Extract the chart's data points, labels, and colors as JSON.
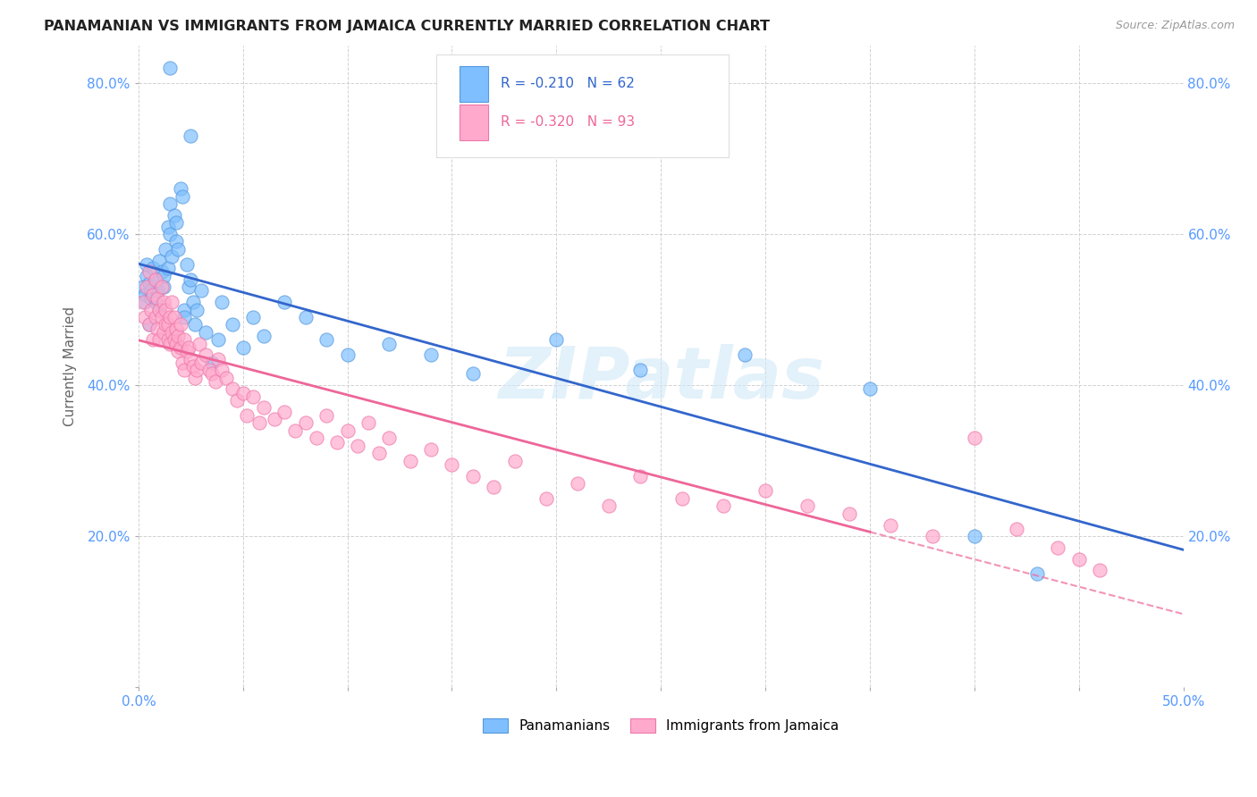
{
  "title": "PANAMANIAN VS IMMIGRANTS FROM JAMAICA CURRENTLY MARRIED CORRELATION CHART",
  "source": "Source: ZipAtlas.com",
  "ylabel_left": "Currently Married",
  "xlim": [
    0.0,
    0.5
  ],
  "ylim": [
    0.0,
    0.85
  ],
  "x_ticks": [
    0.0,
    0.05,
    0.1,
    0.15,
    0.2,
    0.25,
    0.3,
    0.35,
    0.4,
    0.45,
    0.5
  ],
  "x_tick_labels_show": {
    "0.0": "0.0%",
    "0.50": "50.0%"
  },
  "y_ticks": [
    0.0,
    0.2,
    0.4,
    0.6,
    0.8
  ],
  "y_tick_labels": [
    "",
    "20.0%",
    "40.0%",
    "60.0%",
    "80.0%"
  ],
  "legend_r1": "R = -0.210",
  "legend_n1": "N = 62",
  "legend_r2": "R = -0.320",
  "legend_n2": "N = 93",
  "blue_color": "#7fbfff",
  "blue_edge": "#5599dd",
  "pink_color": "#ffaacc",
  "pink_edge": "#ee77aa",
  "line_blue": "#3366cc",
  "line_pink": "#ee6699",
  "watermark": "ZIPatlas",
  "blue_r": -0.21,
  "blue_n": 62,
  "pink_r": -0.32,
  "pink_n": 93,
  "blue_x": [
    0.002,
    0.003,
    0.003,
    0.004,
    0.004,
    0.005,
    0.005,
    0.006,
    0.006,
    0.007,
    0.008,
    0.008,
    0.009,
    0.01,
    0.01,
    0.011,
    0.012,
    0.012,
    0.013,
    0.014,
    0.014,
    0.015,
    0.015,
    0.016,
    0.017,
    0.018,
    0.018,
    0.019,
    0.02,
    0.021,
    0.022,
    0.022,
    0.023,
    0.024,
    0.025,
    0.026,
    0.027,
    0.028,
    0.03,
    0.032,
    0.035,
    0.038,
    0.04,
    0.045,
    0.05,
    0.055,
    0.06,
    0.07,
    0.08,
    0.09,
    0.1,
    0.12,
    0.14,
    0.16,
    0.2,
    0.24,
    0.29,
    0.35,
    0.4,
    0.43,
    0.015,
    0.025
  ],
  "blue_y": [
    0.53,
    0.52,
    0.51,
    0.545,
    0.56,
    0.535,
    0.48,
    0.525,
    0.515,
    0.555,
    0.51,
    0.54,
    0.525,
    0.5,
    0.565,
    0.55,
    0.53,
    0.545,
    0.58,
    0.555,
    0.61,
    0.6,
    0.64,
    0.57,
    0.625,
    0.59,
    0.615,
    0.58,
    0.66,
    0.65,
    0.5,
    0.49,
    0.56,
    0.53,
    0.54,
    0.51,
    0.48,
    0.5,
    0.525,
    0.47,
    0.43,
    0.46,
    0.51,
    0.48,
    0.45,
    0.49,
    0.465,
    0.51,
    0.49,
    0.46,
    0.44,
    0.455,
    0.44,
    0.415,
    0.46,
    0.42,
    0.44,
    0.395,
    0.2,
    0.15,
    0.82,
    0.73
  ],
  "pink_x": [
    0.002,
    0.003,
    0.004,
    0.005,
    0.005,
    0.006,
    0.007,
    0.007,
    0.008,
    0.008,
    0.009,
    0.009,
    0.01,
    0.01,
    0.011,
    0.011,
    0.012,
    0.012,
    0.013,
    0.013,
    0.014,
    0.014,
    0.015,
    0.015,
    0.016,
    0.016,
    0.017,
    0.017,
    0.018,
    0.018,
    0.019,
    0.019,
    0.02,
    0.02,
    0.021,
    0.022,
    0.022,
    0.023,
    0.024,
    0.025,
    0.026,
    0.027,
    0.028,
    0.029,
    0.03,
    0.032,
    0.034,
    0.035,
    0.037,
    0.038,
    0.04,
    0.042,
    0.045,
    0.047,
    0.05,
    0.052,
    0.055,
    0.058,
    0.06,
    0.065,
    0.07,
    0.075,
    0.08,
    0.085,
    0.09,
    0.095,
    0.1,
    0.105,
    0.11,
    0.115,
    0.12,
    0.13,
    0.14,
    0.15,
    0.16,
    0.17,
    0.18,
    0.195,
    0.21,
    0.225,
    0.24,
    0.26,
    0.28,
    0.3,
    0.32,
    0.34,
    0.36,
    0.38,
    0.4,
    0.42,
    0.44,
    0.45,
    0.46
  ],
  "pink_y": [
    0.51,
    0.49,
    0.53,
    0.48,
    0.55,
    0.5,
    0.46,
    0.52,
    0.49,
    0.54,
    0.475,
    0.515,
    0.46,
    0.5,
    0.49,
    0.53,
    0.47,
    0.51,
    0.48,
    0.5,
    0.46,
    0.48,
    0.455,
    0.49,
    0.47,
    0.51,
    0.46,
    0.49,
    0.455,
    0.475,
    0.445,
    0.465,
    0.45,
    0.48,
    0.43,
    0.42,
    0.46,
    0.445,
    0.45,
    0.435,
    0.425,
    0.41,
    0.42,
    0.455,
    0.43,
    0.44,
    0.42,
    0.415,
    0.405,
    0.435,
    0.42,
    0.41,
    0.395,
    0.38,
    0.39,
    0.36,
    0.385,
    0.35,
    0.37,
    0.355,
    0.365,
    0.34,
    0.35,
    0.33,
    0.36,
    0.325,
    0.34,
    0.32,
    0.35,
    0.31,
    0.33,
    0.3,
    0.315,
    0.295,
    0.28,
    0.265,
    0.3,
    0.25,
    0.27,
    0.24,
    0.28,
    0.25,
    0.24,
    0.26,
    0.24,
    0.23,
    0.215,
    0.2,
    0.33,
    0.21,
    0.185,
    0.17,
    0.155
  ]
}
